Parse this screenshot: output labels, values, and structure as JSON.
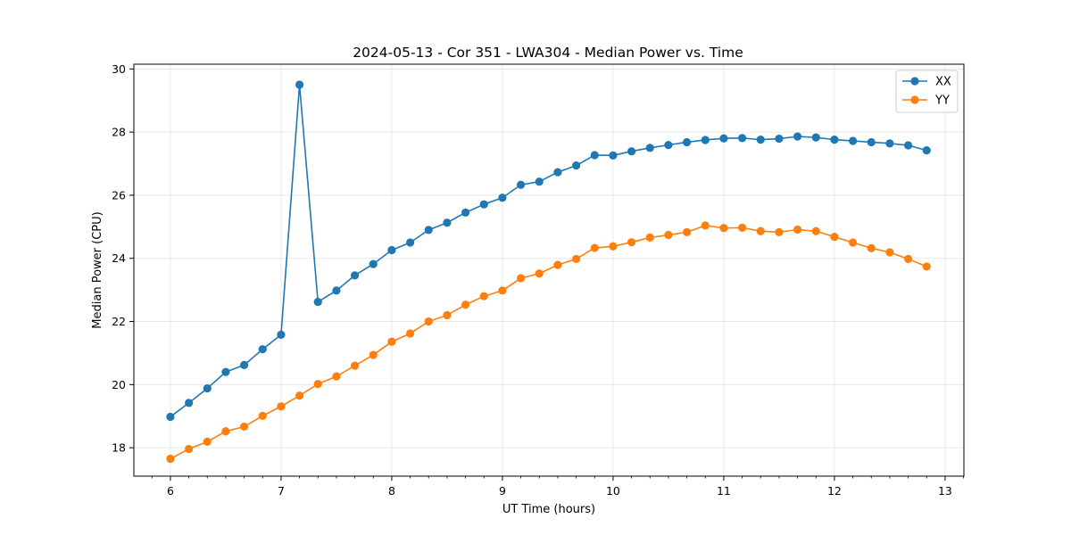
{
  "chart_data": {
    "type": "line",
    "title": "2024-05-13 - Cor 351 - LWA304 - Median Power vs. Time",
    "xlabel": "UT Time (hours)",
    "ylabel": "Median Power (CPU)",
    "xlim": [
      5.67,
      13.17
    ],
    "ylim": [
      17.1,
      30.15
    ],
    "xticks": [
      6,
      7,
      8,
      9,
      10,
      11,
      12,
      13
    ],
    "xtick_labels": [
      "6",
      "7",
      "8",
      "9",
      "10",
      "11",
      "12",
      "13"
    ],
    "yticks": [
      18,
      20,
      22,
      24,
      26,
      28,
      30
    ],
    "ytick_labels": [
      "18",
      "20",
      "22",
      "24",
      "26",
      "28",
      "30"
    ],
    "grid": true,
    "legend_position": "top-right",
    "x": [
      6.0,
      6.1667,
      6.3333,
      6.5,
      6.6667,
      6.8333,
      7.0,
      7.1667,
      7.3333,
      7.5,
      7.6667,
      7.8333,
      8.0,
      8.1667,
      8.3333,
      8.5,
      8.6667,
      8.8333,
      9.0,
      9.1667,
      9.3333,
      9.5,
      9.6667,
      9.8333,
      10.0,
      10.1667,
      10.3333,
      10.5,
      10.6667,
      10.8333,
      11.0,
      11.1667,
      11.3333,
      11.5,
      11.6667,
      11.8333,
      12.0,
      12.1667,
      12.3333,
      12.5,
      12.6667,
      12.8333
    ],
    "series": [
      {
        "name": "XX",
        "color": "#1f77b4",
        "values": [
          18.98,
          19.42,
          19.88,
          20.4,
          20.62,
          21.12,
          21.58,
          29.5,
          22.62,
          22.98,
          23.46,
          23.82,
          24.26,
          24.5,
          24.9,
          25.13,
          25.45,
          25.71,
          25.92,
          26.33,
          26.43,
          26.73,
          26.94,
          27.27,
          27.26,
          27.39,
          27.5,
          27.59,
          27.68,
          27.75,
          27.8,
          27.81,
          27.76,
          27.79,
          27.86,
          27.83,
          27.76,
          27.72,
          27.68,
          27.64,
          27.58,
          27.42
        ]
      },
      {
        "name": "YY",
        "color": "#ff7f0e",
        "values": [
          17.65,
          17.96,
          18.19,
          18.52,
          18.67,
          19.01,
          19.31,
          19.65,
          20.02,
          20.26,
          20.6,
          20.94,
          21.36,
          21.62,
          22.0,
          22.2,
          22.53,
          22.8,
          22.98,
          23.37,
          23.52,
          23.79,
          23.98,
          24.33,
          24.38,
          24.51,
          24.66,
          24.74,
          24.83,
          25.04,
          24.96,
          24.97,
          24.86,
          24.83,
          24.91,
          24.86,
          24.68,
          24.5,
          24.32,
          24.19,
          23.98,
          23.74
        ]
      }
    ]
  }
}
